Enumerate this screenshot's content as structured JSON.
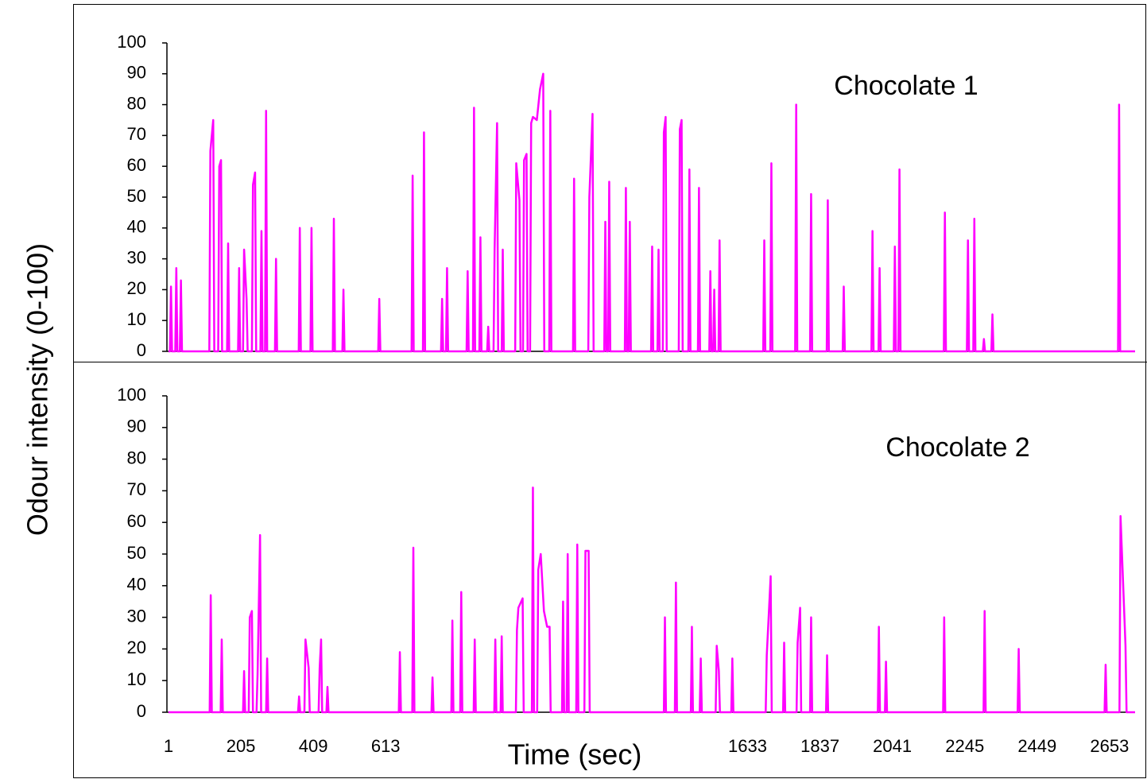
{
  "chart_data": [
    {
      "type": "line",
      "annotation": "Chocolate 1",
      "ylabel": "Odour intensity (0-100)",
      "xlim": [
        1,
        2725
      ],
      "ylim": [
        0,
        100
      ],
      "yticks": [
        0,
        10,
        20,
        30,
        40,
        50,
        60,
        70,
        80,
        90,
        100
      ],
      "x": [
        1,
        5,
        8,
        11,
        20,
        23,
        26,
        33,
        36,
        39,
        116,
        119,
        127,
        130,
        141,
        144,
        149,
        152,
        166,
        169,
        172,
        197,
        200,
        203,
        211,
        214,
        221,
        224,
        236,
        239,
        245,
        248,
        260,
        263,
        266,
        273,
        276,
        279,
        301,
        304,
        307,
        368,
        371,
        374,
        401,
        404,
        407,
        464,
        467,
        470,
        491,
        494,
        497,
        592,
        595,
        598,
        686,
        689,
        692,
        718,
        721,
        724,
        769,
        772,
        775,
        783,
        786,
        789,
        841,
        844,
        847,
        859,
        862,
        865,
        877,
        880,
        883,
        899,
        902,
        905,
        917,
        920,
        927,
        930,
        940,
        943,
        946,
        978,
        981,
        990,
        993,
        1000,
        1003,
        1010,
        1013,
        1020,
        1023,
        1028,
        1039,
        1048,
        1057,
        1060,
        1074,
        1077,
        1080,
        1141,
        1144,
        1147,
        1184,
        1187,
        1196,
        1199,
        1229,
        1232,
        1235,
        1240,
        1243,
        1246,
        1287,
        1290,
        1293,
        1298,
        1301,
        1304,
        1361,
        1364,
        1367,
        1379,
        1382,
        1385,
        1394,
        1397,
        1402,
        1405,
        1439,
        1442,
        1447,
        1450,
        1466,
        1469,
        1472,
        1493,
        1496,
        1499,
        1525,
        1528,
        1531,
        1536,
        1539,
        1542,
        1551,
        1554,
        1557,
        1677,
        1680,
        1683,
        1697,
        1700,
        1703,
        1767,
        1770,
        1773,
        1809,
        1812,
        1815,
        1856,
        1859,
        1862,
        1901,
        1904,
        1907,
        1982,
        1985,
        1988,
        2002,
        2005,
        2008,
        2045,
        2048,
        2051,
        2058,
        2061,
        2064,
        2186,
        2189,
        2192,
        2251,
        2254,
        2257,
        2269,
        2272,
        2275,
        2296,
        2299,
        2302,
        2320,
        2323,
        2326,
        2677,
        2680,
        2683,
        2725
      ],
      "series": [
        {
          "color": "#ff00ff",
          "values": [
            0,
            0,
            21,
            0,
            0,
            27,
            0,
            0,
            23,
            0,
            0,
            65,
            75,
            0,
            0,
            60,
            62,
            0,
            0,
            35,
            0,
            0,
            27,
            0,
            0,
            33,
            17,
            0,
            0,
            54,
            58,
            0,
            0,
            39,
            0,
            0,
            78,
            0,
            0,
            30,
            0,
            0,
            40,
            0,
            0,
            40,
            0,
            0,
            43,
            0,
            0,
            20,
            0,
            0,
            17,
            0,
            0,
            57,
            0,
            0,
            71,
            0,
            0,
            17,
            0,
            0,
            27,
            0,
            0,
            26,
            0,
            0,
            79,
            0,
            0,
            37,
            0,
            0,
            8,
            0,
            0,
            33,
            74,
            0,
            0,
            33,
            0,
            0,
            61,
            49,
            0,
            0,
            62,
            64,
            0,
            0,
            74,
            76,
            75,
            85,
            90,
            0,
            0,
            78,
            0,
            0,
            56,
            0,
            0,
            50,
            77,
            0,
            0,
            42,
            0,
            0,
            55,
            0,
            0,
            53,
            0,
            0,
            42,
            0,
            0,
            34,
            0,
            0,
            33,
            0,
            0,
            71,
            76,
            0,
            0,
            72,
            75,
            0,
            0,
            59,
            0,
            0,
            53,
            0,
            0,
            26,
            0,
            0,
            20,
            0,
            0,
            36,
            0,
            0,
            36,
            0,
            0,
            61,
            0,
            0,
            80,
            0,
            0,
            51,
            0,
            0,
            49,
            0,
            0,
            21,
            0,
            0,
            39,
            0,
            0,
            27,
            0,
            0,
            34,
            0,
            0,
            59,
            0,
            0,
            45,
            0,
            0,
            36,
            0,
            0,
            43,
            0,
            0,
            4,
            0,
            0,
            12,
            0,
            0,
            80,
            0,
            0
          ]
        }
      ]
    },
    {
      "type": "line",
      "annotation": "Chocolate 2",
      "xlabel": "Time (sec)",
      "xlim": [
        1,
        2725
      ],
      "xticks": [
        1,
        205,
        409,
        613,
        1633,
        1837,
        2041,
        2245,
        2449,
        2653
      ],
      "ylim": [
        0,
        100
      ],
      "yticks": [
        0,
        10,
        20,
        30,
        40,
        50,
        60,
        70,
        80,
        90,
        100
      ],
      "x": [
        1,
        117,
        120,
        123,
        148,
        151,
        154,
        211,
        214,
        217,
        227,
        230,
        236,
        239,
        249,
        252,
        259,
        262,
        276,
        279,
        282,
        366,
        369,
        372,
        384,
        387,
        396,
        399,
        424,
        427,
        431,
        434,
        446,
        449,
        452,
        650,
        653,
        656,
        688,
        691,
        694,
        742,
        745,
        748,
        798,
        801,
        804,
        823,
        826,
        829,
        861,
        864,
        867,
        919,
        922,
        925,
        937,
        940,
        943,
        980,
        983,
        987,
        999,
        1002,
        1025,
        1028,
        1031,
        1040,
        1043,
        1050,
        1059,
        1068,
        1075,
        1078,
        1110,
        1113,
        1116,
        1123,
        1126,
        1129,
        1150,
        1153,
        1156,
        1173,
        1176,
        1185,
        1188,
        1397,
        1400,
        1403,
        1428,
        1431,
        1434,
        1473,
        1476,
        1479,
        1498,
        1501,
        1504,
        1543,
        1546,
        1552,
        1555,
        1587,
        1590,
        1593,
        1684,
        1687,
        1698,
        1701,
        1733,
        1736,
        1739,
        1771,
        1774,
        1781,
        1784,
        1809,
        1812,
        1815,
        1854,
        1857,
        1860,
        2000,
        2003,
        2006,
        2020,
        2023,
        2026,
        2184,
        2187,
        2190,
        2298,
        2301,
        2304,
        2394,
        2397,
        2400,
        2639,
        2642,
        2645,
        2681,
        2684,
        2698,
        2701,
        2725
      ],
      "series": [
        {
          "color": "#ff00ff",
          "values": [
            0,
            0,
            37,
            0,
            0,
            23,
            0,
            0,
            13,
            0,
            0,
            30,
            32,
            0,
            0,
            12,
            56,
            0,
            0,
            17,
            0,
            0,
            5,
            0,
            0,
            23,
            14,
            0,
            0,
            14,
            23,
            0,
            0,
            8,
            0,
            0,
            19,
            0,
            0,
            52,
            0,
            0,
            11,
            0,
            0,
            29,
            0,
            0,
            38,
            0,
            0,
            23,
            0,
            0,
            23,
            0,
            0,
            24,
            0,
            0,
            26,
            33,
            36,
            0,
            0,
            71,
            0,
            0,
            45,
            50,
            32,
            27,
            27,
            0,
            0,
            35,
            0,
            0,
            50,
            0,
            0,
            53,
            0,
            0,
            51,
            51,
            0,
            0,
            30,
            0,
            0,
            41,
            0,
            0,
            27,
            0,
            0,
            17,
            0,
            0,
            21,
            13,
            0,
            0,
            17,
            0,
            0,
            18,
            43,
            0,
            0,
            22,
            0,
            0,
            22,
            33,
            0,
            0,
            30,
            0,
            0,
            18,
            0,
            0,
            27,
            0,
            0,
            16,
            0,
            0,
            30,
            0,
            0,
            32,
            0,
            0,
            20,
            0,
            0,
            15,
            0,
            0,
            62,
            21,
            0,
            0
          ]
        }
      ]
    }
  ]
}
